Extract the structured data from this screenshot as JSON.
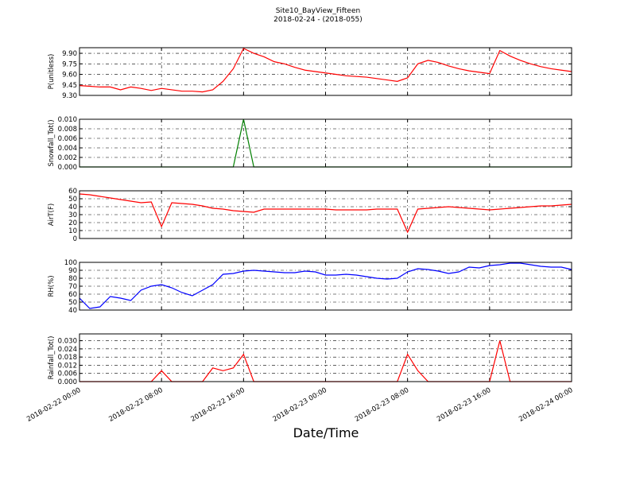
{
  "title": "Site10_BayView_Fifteen",
  "subtitle": "2018-02-24 - (2018-055)",
  "xlabel": "Date/Time",
  "x": [
    0,
    1,
    2,
    3,
    4,
    5,
    6,
    7,
    8,
    9,
    10,
    11,
    12,
    13,
    14,
    15,
    16,
    17,
    18,
    19,
    20,
    21,
    22,
    23,
    24,
    25,
    26,
    27,
    28,
    29,
    30,
    31,
    32,
    33,
    34,
    35,
    36,
    37,
    38,
    39,
    40,
    41,
    42,
    43,
    44,
    45,
    46,
    47,
    48
  ],
  "xlim": [
    0,
    48
  ],
  "xticks": [
    {
      "value": 0,
      "label": "2018-02-22 00:00"
    },
    {
      "value": 8,
      "label": "2018-02-22 08:00"
    },
    {
      "value": 16,
      "label": "2018-02-22 16:00"
    },
    {
      "value": 24,
      "label": "2018-02-23 00:00"
    },
    {
      "value": 32,
      "label": "2018-02-23 08:00"
    },
    {
      "value": 40,
      "label": "2018-02-23 16:00"
    },
    {
      "value": 48,
      "label": "2018-02-24 00:00"
    }
  ],
  "chart_data": [
    {
      "type": "line",
      "ylabel": "P(unitless)",
      "color": "#ff0000",
      "grid": true,
      "ylim": [
        9.3,
        9.98
      ],
      "yticks": [
        {
          "value": 9.3,
          "label": "9.30"
        },
        9.45,
        {
          "value": 9.6,
          "label": "9.60"
        },
        9.75,
        {
          "value": 9.9,
          "label": "9.90"
        }
      ],
      "values": [
        9.44,
        9.43,
        9.42,
        9.42,
        9.38,
        9.42,
        9.4,
        9.37,
        9.4,
        9.38,
        9.36,
        9.36,
        9.35,
        9.38,
        9.5,
        9.68,
        9.97,
        9.9,
        9.85,
        9.78,
        9.75,
        9.7,
        9.66,
        9.64,
        9.62,
        9.6,
        9.58,
        9.57,
        9.56,
        9.54,
        9.52,
        9.5,
        9.55,
        9.75,
        9.8,
        9.77,
        9.72,
        9.68,
        9.65,
        9.63,
        9.61,
        9.94,
        9.86,
        9.8,
        9.75,
        9.71,
        9.68,
        9.66,
        9.64
      ]
    },
    {
      "type": "line",
      "ylabel": "Snowfall_Tot()",
      "color": "#007f00",
      "grid": true,
      "ylim": [
        0,
        0.01
      ],
      "yticks": [
        {
          "value": 0,
          "label": "0.000"
        },
        {
          "value": 0.002,
          "label": "0.002"
        },
        {
          "value": 0.004,
          "label": "0.004"
        },
        {
          "value": 0.006,
          "label": "0.006"
        },
        {
          "value": 0.008,
          "label": "0.008"
        },
        {
          "value": 0.01,
          "label": "0.010"
        }
      ],
      "values": [
        0,
        0,
        0,
        0,
        0,
        0,
        0,
        0,
        0,
        0,
        0,
        0,
        0,
        0,
        0,
        0,
        0.01,
        0,
        0,
        0,
        0,
        0,
        0,
        0,
        0,
        0,
        0,
        0,
        0,
        0,
        0,
        0,
        0,
        0,
        0,
        0,
        0,
        0,
        0,
        0,
        0,
        0,
        0,
        0,
        0,
        0,
        0,
        0,
        0
      ]
    },
    {
      "type": "line",
      "ylabel": "AirT(F)",
      "color": "#ff0000",
      "grid": true,
      "ylim": [
        0,
        60
      ],
      "yticks": [
        0,
        10,
        20,
        30,
        40,
        50,
        60
      ],
      "values": [
        56,
        55,
        53,
        51,
        49,
        47,
        45,
        46,
        15,
        45,
        44,
        43,
        41,
        38,
        37,
        35,
        34,
        33,
        37,
        37,
        37,
        37,
        37,
        37,
        37,
        36,
        36,
        36,
        36,
        37,
        37,
        37,
        8,
        37,
        38,
        39,
        40,
        39,
        38,
        37,
        36,
        37,
        38,
        39,
        40,
        41,
        41,
        42,
        43
      ]
    },
    {
      "type": "line",
      "ylabel": "RH(%)",
      "color": "#0000ff",
      "grid": true,
      "ylim": [
        40,
        100
      ],
      "yticks": [
        40,
        50,
        60,
        70,
        80,
        90,
        100
      ],
      "values": [
        55,
        42,
        44,
        57,
        55,
        52,
        65,
        70,
        72,
        68,
        62,
        58,
        65,
        72,
        85,
        86,
        89,
        90,
        89,
        88,
        87,
        87,
        89,
        88,
        84,
        84,
        85,
        84,
        82,
        80,
        79,
        80,
        88,
        92,
        91,
        89,
        86,
        88,
        94,
        93,
        96,
        97,
        99,
        99,
        97,
        95,
        94,
        94,
        91
      ]
    },
    {
      "type": "line",
      "ylabel": "Rainfall_Tot()",
      "color": "#ff0000",
      "grid": true,
      "ylim": [
        0,
        0.035
      ],
      "yticks": [
        {
          "value": 0,
          "label": "0.000"
        },
        {
          "value": 0.006,
          "label": "0.006"
        },
        {
          "value": 0.012,
          "label": "0.012"
        },
        {
          "value": 0.018,
          "label": "0.018"
        },
        {
          "value": 0.024,
          "label": "0.024"
        },
        {
          "value": 0.03,
          "label": "0.030"
        }
      ],
      "values": [
        0,
        0,
        0,
        0,
        0,
        0,
        0,
        0,
        0.008,
        0,
        0,
        0,
        0,
        0.01,
        0.008,
        0.01,
        0.02,
        0,
        0,
        0,
        0,
        0,
        0,
        0,
        0,
        0,
        0,
        0,
        0,
        0,
        0,
        0,
        0.02,
        0.008,
        0,
        0,
        0,
        0,
        0,
        0,
        0,
        0.03,
        0,
        0,
        0,
        0,
        0,
        0,
        0
      ]
    }
  ]
}
